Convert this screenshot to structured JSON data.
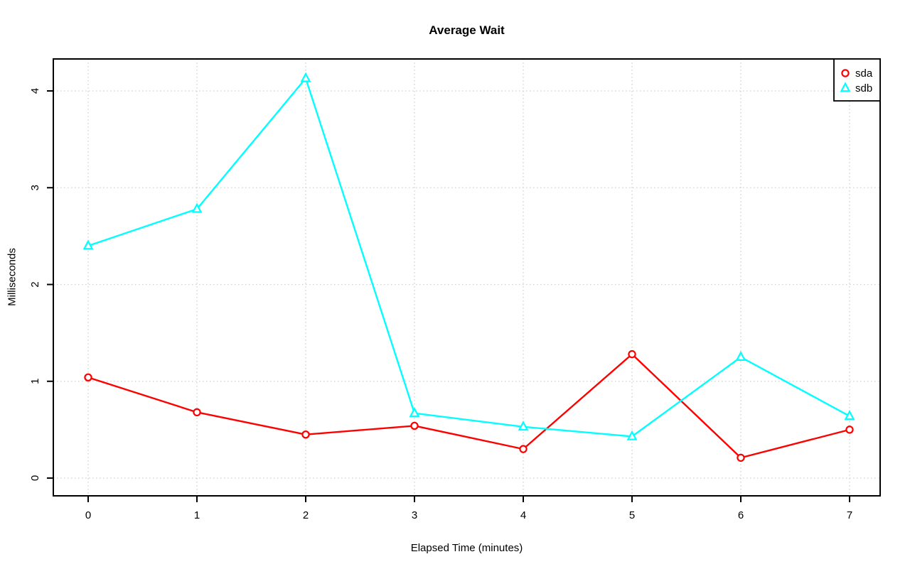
{
  "figure": {
    "title": "Average Wait",
    "x_axis_label": "Elapsed Time (minutes)",
    "y_axis_label": "Milliseconds"
  },
  "chart_data": {
    "type": "line",
    "title": "Average Wait",
    "xlabel": "Elapsed Time (minutes)",
    "ylabel": "Milliseconds",
    "x": [
      0,
      1,
      2,
      3,
      4,
      5,
      6,
      7
    ],
    "x_tick_labels": [
      "0",
      "1",
      "2",
      "3",
      "4",
      "5",
      "6",
      "7"
    ],
    "y_ticks": [
      0,
      1,
      2,
      3,
      4
    ],
    "y_tick_labels": [
      "0",
      "1",
      "2",
      "3",
      "4"
    ],
    "xlim": [
      -0.32,
      7.28
    ],
    "ylim": [
      -0.18,
      4.33
    ],
    "grid": {
      "style": "dotted",
      "color": "#d2d2d2",
      "x_lines": [
        0,
        1,
        2,
        3,
        4,
        5,
        6,
        7
      ],
      "y_lines": [
        0,
        1,
        2,
        3,
        4
      ]
    },
    "series": [
      {
        "name": "sda",
        "color": "#ff0000",
        "marker": "open-circle",
        "values": [
          1.04,
          0.68,
          0.45,
          0.54,
          0.3,
          1.28,
          0.21,
          0.5
        ]
      },
      {
        "name": "sdb",
        "color": "#00ffff",
        "marker": "open-triangle",
        "values": [
          2.4,
          2.78,
          4.13,
          0.67,
          0.53,
          0.43,
          1.25,
          0.64
        ]
      }
    ],
    "legend": {
      "position": "top-right",
      "entries": [
        {
          "label": "sda",
          "color": "#ff0000",
          "marker": "open-circle"
        },
        {
          "label": "sdb",
          "color": "#00ffff",
          "marker": "open-triangle"
        }
      ]
    },
    "colors": {
      "axis": "#000000",
      "text": "#000000",
      "background": "#ffffff",
      "grid": "#d2d2d2"
    }
  }
}
